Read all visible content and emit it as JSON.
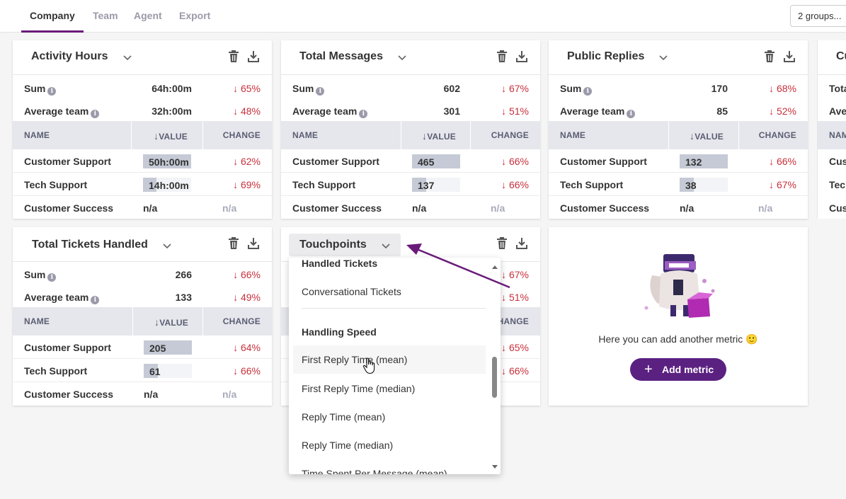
{
  "tabs": [
    {
      "label": "Company",
      "active": true
    },
    {
      "label": "Team"
    },
    {
      "label": "Agent"
    },
    {
      "label": "Export"
    }
  ],
  "groups_button": "2 groups...",
  "common": {
    "sum_label": "Sum",
    "average_label": "Average team",
    "info": "i",
    "col_name": "NAME",
    "col_value": "VALUE",
    "col_change": "CHANGE"
  },
  "cards": [
    {
      "title": "Activity Hours",
      "sum": "64h:00m",
      "sum_change": "65%",
      "avg": "32h:00m",
      "avg_change": "48%",
      "rows": [
        {
          "name": "Customer Support",
          "value": "50h:00m",
          "fill": 1.0,
          "change": "62%"
        },
        {
          "name": "Tech Support",
          "value": "14h:00m",
          "fill": 0.28,
          "change": "69%"
        },
        {
          "name": "Customer Success",
          "value": "n/a",
          "change": "n/a"
        }
      ]
    },
    {
      "title": "Total Messages",
      "sum": "602",
      "sum_change": "67%",
      "avg": "301",
      "avg_change": "51%",
      "rows": [
        {
          "name": "Customer Support",
          "value": "465",
          "fill": 1.0,
          "change": "66%"
        },
        {
          "name": "Tech Support",
          "value": "137",
          "fill": 0.29,
          "change": "66%"
        },
        {
          "name": "Customer Success",
          "value": "n/a",
          "change": "n/a"
        }
      ]
    },
    {
      "title": "Public Replies",
      "sum": "170",
      "sum_change": "68%",
      "avg": "85",
      "avg_change": "52%",
      "rows": [
        {
          "name": "Customer Support",
          "value": "132",
          "fill": 1.0,
          "change": "66%"
        },
        {
          "name": "Tech Support",
          "value": "38",
          "fill": 0.29,
          "change": "67%"
        },
        {
          "name": "Customer Success",
          "value": "n/a",
          "change": "n/a"
        }
      ]
    },
    {
      "title": "Cu",
      "partial_sum": "Tota",
      "partial_avg": "Ave",
      "partial_col": "NAM",
      "partial_rows": [
        "Cus",
        "Tech",
        "Cus"
      ]
    },
    {
      "title": "Total Tickets Handled",
      "sum": "266",
      "sum_change": "66%",
      "avg": "133",
      "avg_change": "49%",
      "rows": [
        {
          "name": "Customer Support",
          "value": "205",
          "fill": 1.0,
          "change": "64%"
        },
        {
          "name": "Tech Support",
          "value": "61",
          "fill": 0.3,
          "change": "66%"
        },
        {
          "name": "Customer Success",
          "value": "n/a",
          "change": "n/a"
        }
      ]
    },
    {
      "title": "Touchpoints",
      "sum_change": "67%",
      "avg_change": "51%",
      "col_change_partial": "HANGE",
      "rows": [
        {
          "change": "65%"
        },
        {
          "change": "66%"
        },
        {
          "change_partial": "a"
        }
      ]
    }
  ],
  "dropdown": {
    "items": [
      {
        "type": "item",
        "label": "Handled Tickets"
      },
      {
        "type": "item",
        "label": "Conversational Tickets"
      },
      {
        "type": "group",
        "label": "Handling Speed"
      },
      {
        "type": "item",
        "label": "First Reply Time (mean)",
        "hover": true
      },
      {
        "type": "item",
        "label": "First Reply Time (median)"
      },
      {
        "type": "item",
        "label": "Reply Time (mean)"
      },
      {
        "type": "item",
        "label": "Reply Time (median)"
      },
      {
        "type": "item",
        "label": "Time Spent Per Message (mean)"
      }
    ]
  },
  "add_metric": {
    "text": "Here you can add another metric",
    "emoji": "🙂",
    "button": "Add metric",
    "plus": "+"
  },
  "colors": {
    "accent": "#5b2181",
    "negative": "#c8303c",
    "annotation_arrow": "#6a1b7a"
  }
}
